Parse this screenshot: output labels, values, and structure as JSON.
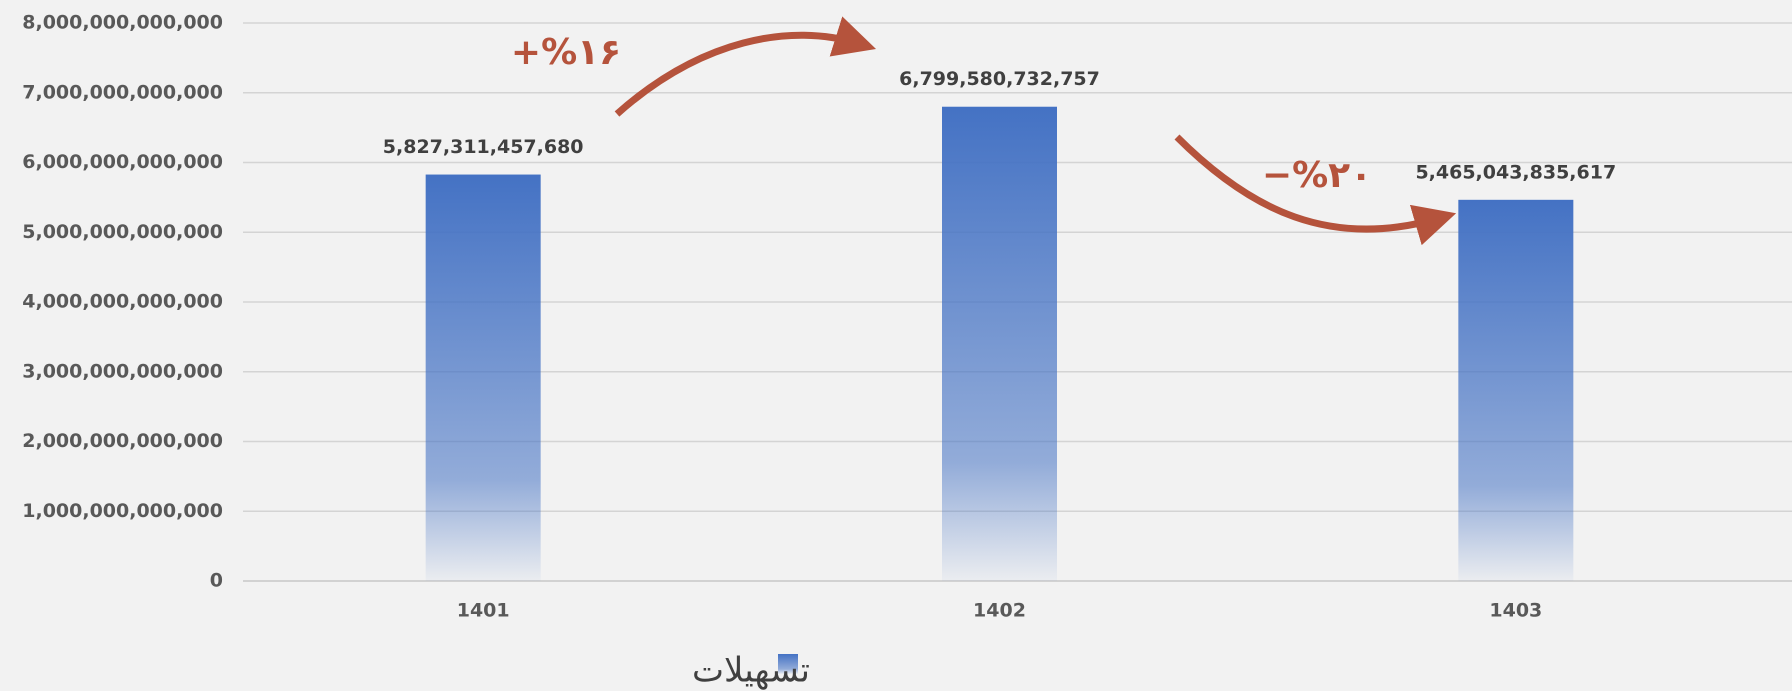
{
  "chart_data": {
    "type": "bar",
    "categories": [
      "1401",
      "1402",
      "1403"
    ],
    "series": [
      {
        "name": "تسهیلات",
        "color": "#4472c4",
        "values": [
          5827311457680,
          6799580732757,
          5465043835617
        ],
        "value_labels": [
          "5,827,311,457,680",
          "6,799,580,732,757",
          "5,465,043,835,617"
        ]
      }
    ],
    "ylim": [
      0,
      8000000000000
    ],
    "yticks": [
      {
        "value": 0,
        "label": "0"
      },
      {
        "value": 1000000000000,
        "label": "1,000,000,000,000"
      },
      {
        "value": 2000000000000,
        "label": "2,000,000,000,000"
      },
      {
        "value": 3000000000000,
        "label": "3,000,000,000,000"
      },
      {
        "value": 4000000000000,
        "label": "4,000,000,000,000"
      },
      {
        "value": 5000000000000,
        "label": "5,000,000,000,000"
      },
      {
        "value": 6000000000000,
        "label": "6,000,000,000,000"
      },
      {
        "value": 7000000000000,
        "label": "7,000,000,000,000"
      },
      {
        "value": 8000000000000,
        "label": "8,000,000,000,000"
      }
    ],
    "grid": true,
    "annotations": [
      "+%۱۶",
      "−%۲۰"
    ],
    "legend": "bottom"
  }
}
